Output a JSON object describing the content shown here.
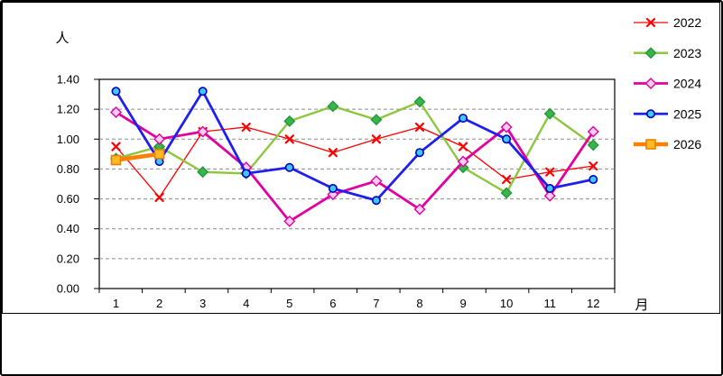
{
  "chart_data": {
    "type": "line",
    "title": "",
    "ylabel": "人",
    "xlabel": "月",
    "ylim": [
      0.0,
      1.4
    ],
    "ytick_step": 0.2,
    "yticks": [
      "0.00",
      "0.20",
      "0.40",
      "0.60",
      "0.80",
      "1.00",
      "1.20",
      "1.40"
    ],
    "categories": [
      "1",
      "2",
      "3",
      "4",
      "5",
      "6",
      "7",
      "8",
      "9",
      "10",
      "11",
      "12"
    ],
    "grid": "horizontal-dashed",
    "gridline_color": "#8C8C8C",
    "legend_position": "right",
    "series": [
      {
        "name": "2022",
        "color": "#FF0000",
        "marker": "x",
        "marker_fill": "#FF0000",
        "marker_stroke": "#FF0000",
        "line_width": 1.3,
        "values": [
          0.95,
          0.61,
          1.05,
          1.08,
          1.0,
          0.91,
          1.0,
          1.08,
          0.95,
          0.73,
          0.78,
          0.82
        ]
      },
      {
        "name": "2023",
        "color": "#8DC63F",
        "marker": "diamond",
        "marker_fill": "#39B54A",
        "marker_stroke": "#249540",
        "line_width": 2.4,
        "values": [
          0.87,
          0.95,
          0.78,
          0.77,
          1.12,
          1.22,
          1.13,
          1.25,
          0.81,
          0.64,
          1.17,
          0.96
        ]
      },
      {
        "name": "2024",
        "color": "#E2009F",
        "marker": "diamond",
        "marker_fill": "#FFCCF2",
        "marker_stroke": "#E2009F",
        "line_width": 2.8,
        "values": [
          1.18,
          1.0,
          1.05,
          0.81,
          0.45,
          0.63,
          0.72,
          0.53,
          0.85,
          1.08,
          0.62,
          1.05
        ]
      },
      {
        "name": "2025",
        "color": "#2020EE",
        "marker": "circle",
        "marker_fill": "#3FC8FF",
        "marker_stroke": "#0000B8",
        "line_width": 2.8,
        "values": [
          1.32,
          0.85,
          1.32,
          0.77,
          0.81,
          0.67,
          0.59,
          0.91,
          1.14,
          1.0,
          0.67,
          0.73
        ]
      },
      {
        "name": "2026",
        "color": "#FF7F00",
        "marker": "square",
        "marker_fill": "#FFBB22",
        "marker_stroke": "#ED7D00",
        "line_width": 4.6,
        "values": [
          0.86,
          0.9,
          null,
          null,
          null,
          null,
          null,
          null,
          null,
          null,
          null,
          null
        ]
      }
    ]
  }
}
